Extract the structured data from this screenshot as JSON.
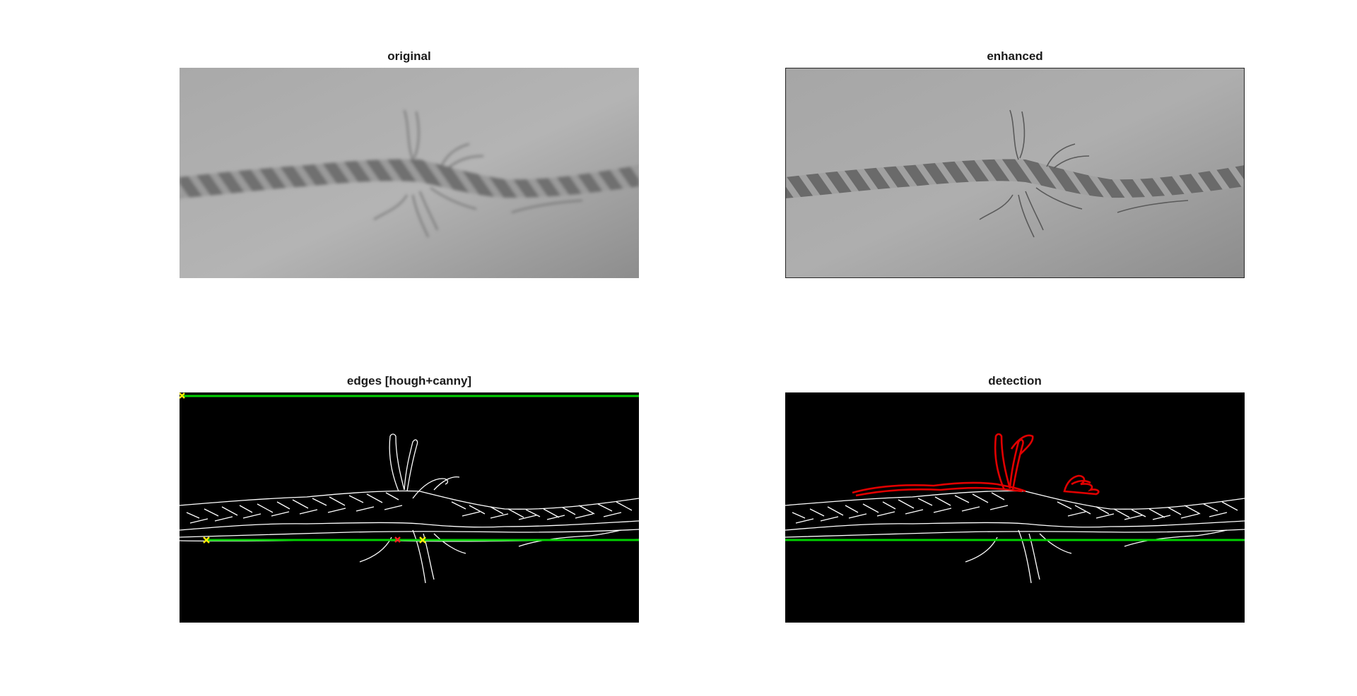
{
  "figure": {
    "panels": [
      {
        "id": "original",
        "title": "original"
      },
      {
        "id": "enhanced",
        "title": "enhanced"
      },
      {
        "id": "edges",
        "title": "edges [hough+canny]"
      },
      {
        "id": "detection",
        "title": "detection"
      }
    ]
  },
  "colors": {
    "hough_line": "#00d000",
    "endpoint_marker": "#ffee00",
    "break_marker": "#ff2020",
    "detection_fray": "#e00000",
    "edge_stroke": "#ffffff",
    "background_dark": "#000000"
  }
}
